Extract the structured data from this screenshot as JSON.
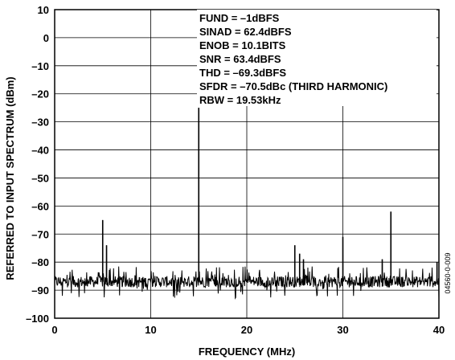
{
  "chart_data": {
    "type": "line",
    "xlabel": "FREQUENCY (MHz)",
    "ylabel": "REFERRED TO INPUT SPECTRUM (dBm)",
    "xlim": [
      0,
      40
    ],
    "ylim": [
      -100,
      10
    ],
    "x_ticks": [
      "0",
      "10",
      "20",
      "30",
      "40"
    ],
    "y_ticks": [
      "10",
      "0",
      "–10",
      "–20",
      "–30",
      "–40",
      "–50",
      "–60",
      "–70",
      "–80",
      "–90",
      "–100"
    ],
    "grid": true,
    "line_color": "#000000",
    "noise_floor": -87,
    "annotations": [
      "FUND = –1dBFS",
      "SINAD = 62.4dBFS",
      "ENOB = 10.1BITS",
      "SNR = 63.4dBFS",
      "THD = –69.3dBFS",
      "SFDR = –70.5dBc (THIRD HARMONIC)",
      "RBW = 19.53kHz"
    ],
    "figure_id": "04560-0-009",
    "peaks": [
      {
        "x": 5.0,
        "y": -65
      },
      {
        "x": 5.4,
        "y": -74
      },
      {
        "x": 15.0,
        "y": -25
      },
      {
        "x": 25.0,
        "y": -74
      },
      {
        "x": 25.5,
        "y": -77
      },
      {
        "x": 25.9,
        "y": -79
      },
      {
        "x": 30.0,
        "y": -71
      },
      {
        "x": 34.1,
        "y": -79
      },
      {
        "x": 35.0,
        "y": -62
      },
      {
        "x": 39.8,
        "y": -80
      }
    ]
  }
}
